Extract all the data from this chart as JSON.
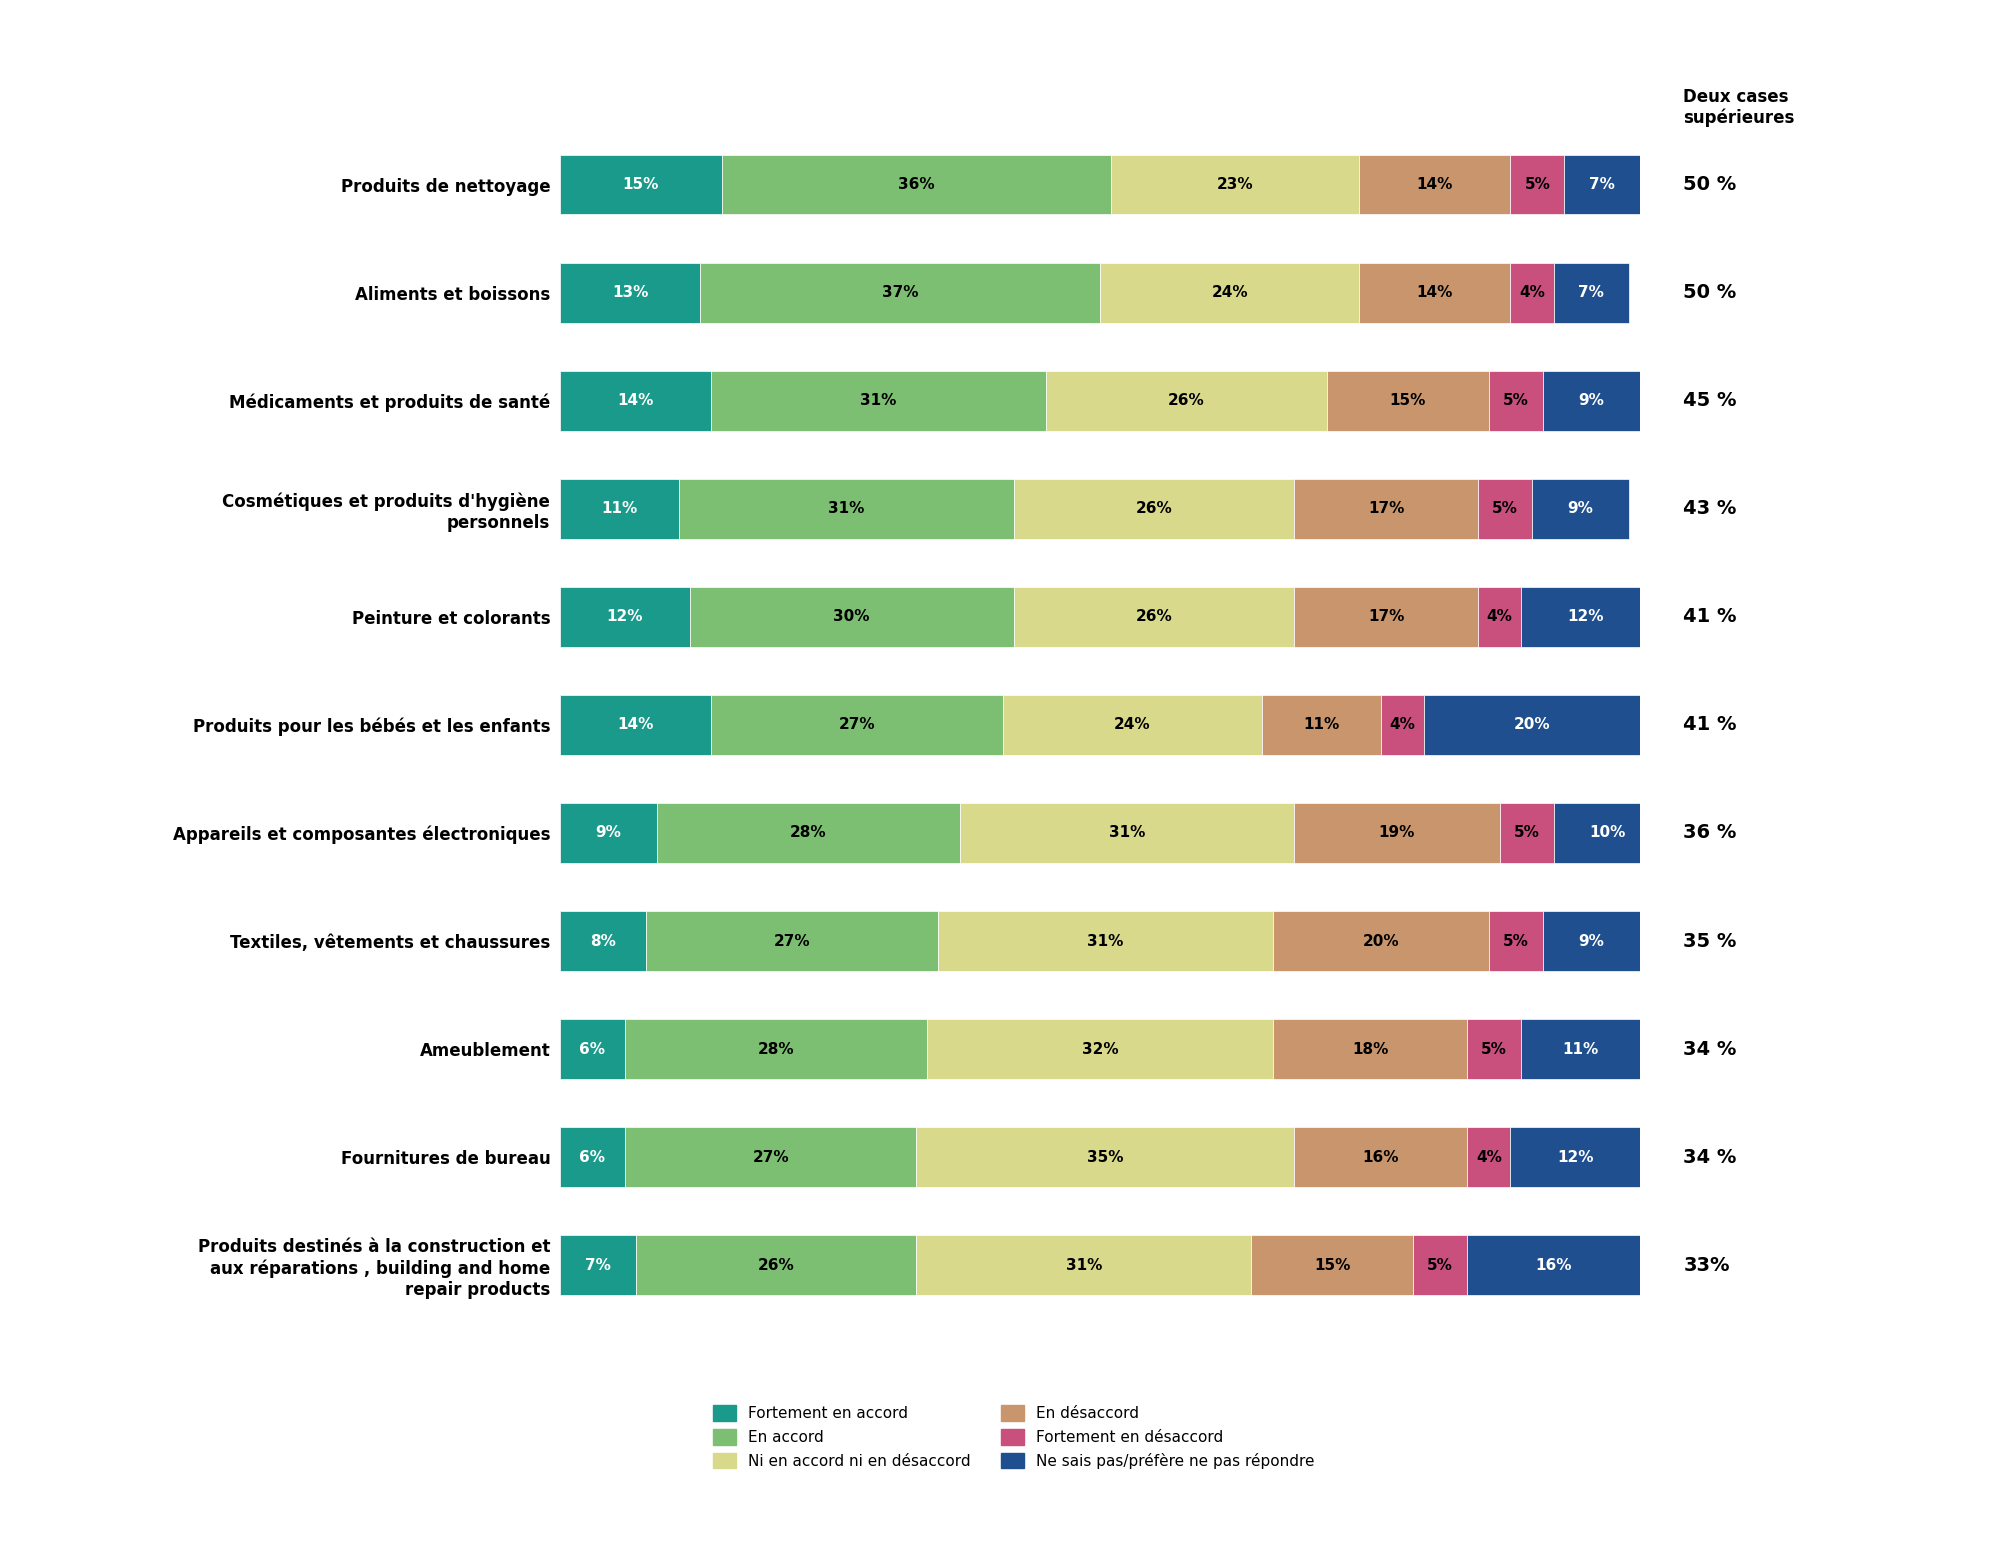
{
  "categories": [
    "Produits de nettoyage",
    "Aliments et boissons",
    "Médicaments et produits de santé",
    "Cosmétiques et produits d'hygiène\npersonnels",
    "Peinture et colorants",
    "Produits pour les bébés et les enfants",
    "Appareils et composantes électroniques",
    "Textiles, vêtements et chaussures",
    "Ameublement",
    "Fournitures de bureau",
    "Produits destinés à la construction et\naux réparations , building and home\nrepair products"
  ],
  "data": [
    [
      15,
      36,
      23,
      14,
      5,
      7
    ],
    [
      13,
      37,
      24,
      14,
      4,
      7
    ],
    [
      14,
      31,
      26,
      15,
      5,
      9
    ],
    [
      11,
      31,
      26,
      17,
      5,
      9
    ],
    [
      12,
      30,
      26,
      17,
      4,
      12
    ],
    [
      14,
      27,
      24,
      11,
      4,
      20
    ],
    [
      9,
      28,
      31,
      19,
      5,
      10
    ],
    [
      8,
      27,
      31,
      20,
      5,
      9
    ],
    [
      6,
      28,
      32,
      18,
      5,
      11
    ],
    [
      6,
      27,
      35,
      16,
      4,
      12
    ],
    [
      7,
      26,
      31,
      15,
      5,
      16
    ]
  ],
  "deux_cases": [
    "50 %",
    "50 %",
    "45 %",
    "43 %",
    "41 %",
    "41 %",
    "36 %",
    "35 %",
    "34 %",
    "34 %",
    "33%"
  ],
  "colors": [
    "#1a9a8a",
    "#7dbf72",
    "#d9d98c",
    "#c8956c",
    "#c94f7c",
    "#1f4f8f"
  ],
  "legend_labels": [
    "Fortement en accord",
    "En accord",
    "Ni en accord ni en désaccord",
    "En désaccord",
    "Fortement en désaccord",
    "Ne sais pas/préfère ne pas répondre"
  ],
  "deux_cases_header": "Deux cases\nsupérieures",
  "bar_height": 0.55,
  "figsize": [
    20.0,
    15.59
  ],
  "dpi": 100
}
